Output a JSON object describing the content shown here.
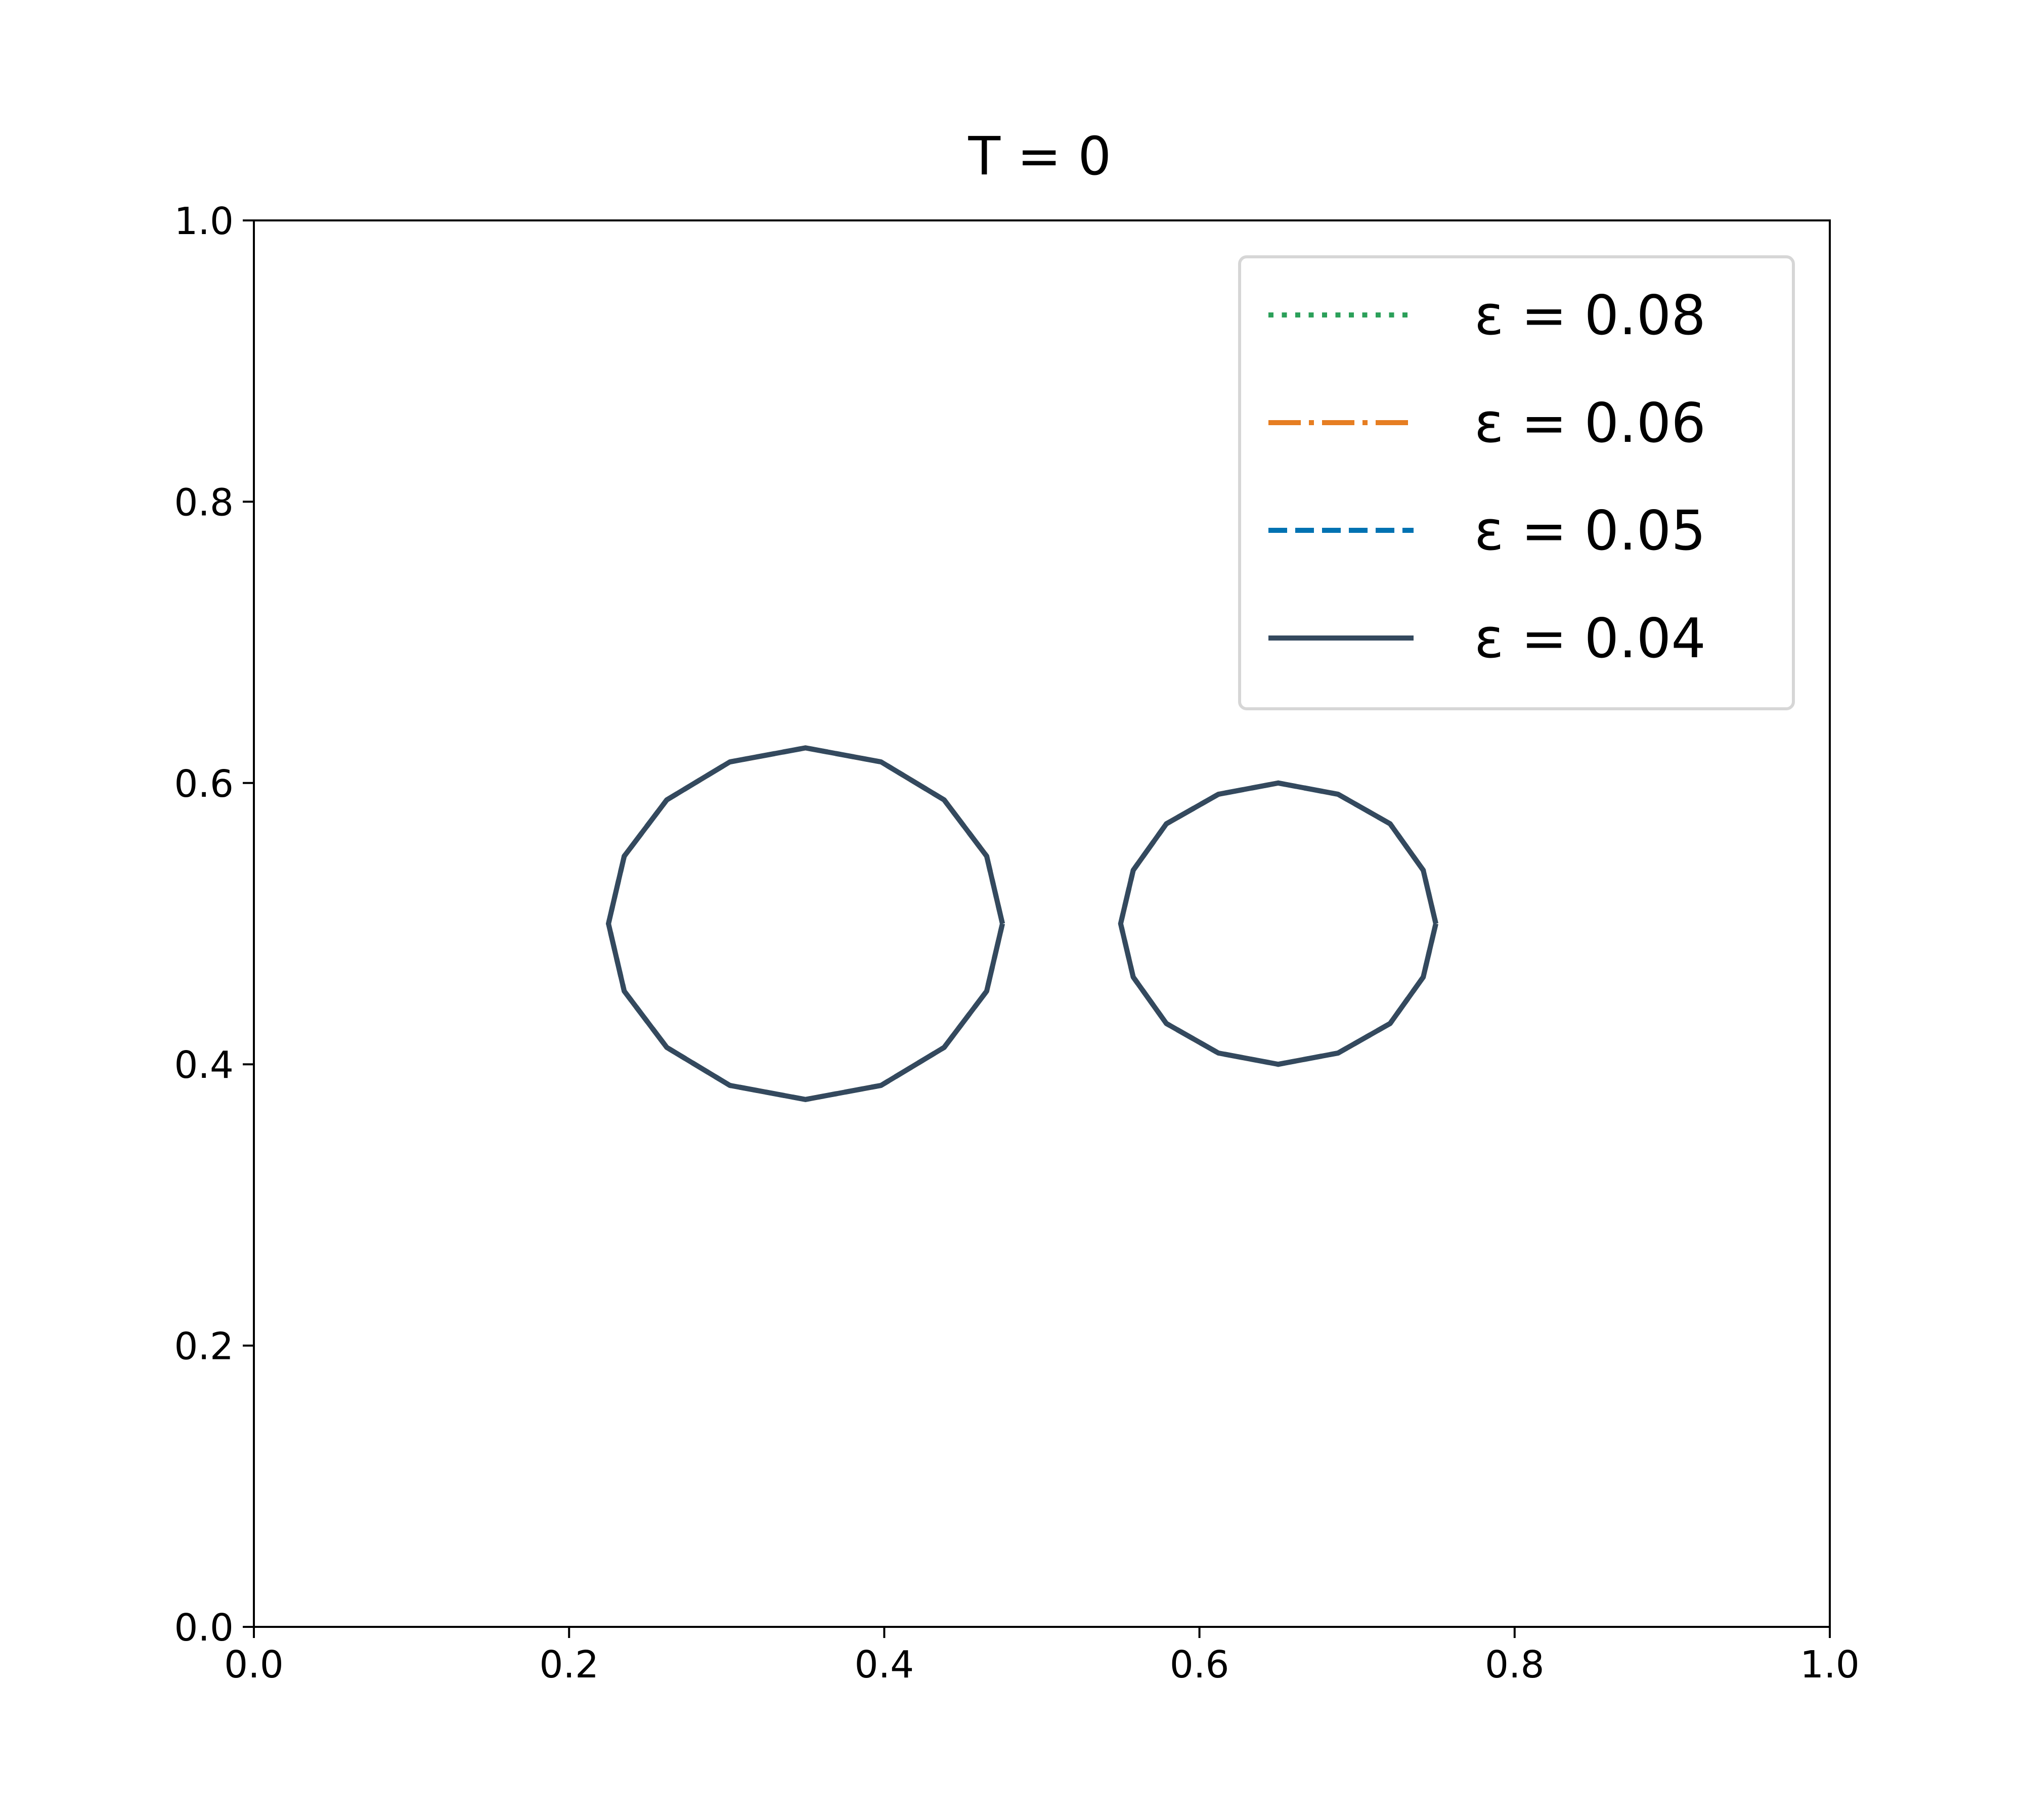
{
  "chart_data": {
    "type": "line",
    "title": "T = 0",
    "x": [
      0.475,
      0.465,
      0.438,
      0.398,
      0.35,
      0.302,
      0.262,
      0.235,
      0.225,
      0.235,
      0.262,
      0.302,
      0.35,
      0.398,
      0.438,
      0.465,
      0.475,
      null,
      0.75,
      0.742,
      0.721,
      0.688,
      0.65,
      0.612,
      0.579,
      0.558,
      0.55,
      0.558,
      0.579,
      0.612,
      0.65,
      0.688,
      0.721,
      0.742,
      0.75
    ],
    "series": [
      {
        "name": "ε = 0.08",
        "color": "#2ca05a",
        "linestyle": "dotted",
        "values": [
          0.5,
          0.548,
          0.588,
          0.615,
          0.625,
          0.615,
          0.588,
          0.548,
          0.5,
          0.452,
          0.412,
          0.385,
          0.375,
          0.385,
          0.412,
          0.452,
          0.5,
          null,
          0.5,
          0.538,
          0.571,
          0.592,
          0.6,
          0.592,
          0.571,
          0.538,
          0.5,
          0.462,
          0.429,
          0.408,
          0.4,
          0.408,
          0.429,
          0.462,
          0.5
        ]
      },
      {
        "name": "ε = 0.06",
        "color": "#e67e22",
        "linestyle": "dashdot",
        "values": [
          0.5,
          0.548,
          0.588,
          0.615,
          0.625,
          0.615,
          0.588,
          0.548,
          0.5,
          0.452,
          0.412,
          0.385,
          0.375,
          0.385,
          0.412,
          0.452,
          0.5,
          null,
          0.5,
          0.538,
          0.571,
          0.592,
          0.6,
          0.592,
          0.571,
          0.538,
          0.5,
          0.462,
          0.429,
          0.408,
          0.4,
          0.408,
          0.429,
          0.462,
          0.5
        ]
      },
      {
        "name": "ε = 0.05",
        "color": "#0072b2",
        "linestyle": "dashed",
        "values": [
          0.5,
          0.548,
          0.588,
          0.615,
          0.625,
          0.615,
          0.588,
          0.548,
          0.5,
          0.452,
          0.412,
          0.385,
          0.375,
          0.385,
          0.412,
          0.452,
          0.5,
          null,
          0.5,
          0.538,
          0.571,
          0.592,
          0.6,
          0.592,
          0.571,
          0.538,
          0.5,
          0.462,
          0.429,
          0.408,
          0.4,
          0.408,
          0.429,
          0.462,
          0.5
        ]
      },
      {
        "name": "ε = 0.04",
        "color": "#34495e",
        "linestyle": "solid",
        "values": [
          0.5,
          0.548,
          0.588,
          0.615,
          0.625,
          0.615,
          0.588,
          0.548,
          0.5,
          0.452,
          0.412,
          0.385,
          0.375,
          0.385,
          0.412,
          0.452,
          0.5,
          null,
          0.5,
          0.538,
          0.571,
          0.592,
          0.6,
          0.592,
          0.571,
          0.538,
          0.5,
          0.462,
          0.429,
          0.408,
          0.4,
          0.408,
          0.429,
          0.462,
          0.5
        ]
      }
    ],
    "xlim": [
      0,
      1
    ],
    "ylim": [
      0,
      1
    ],
    "xticks": [
      {
        "value": 0,
        "label": "0.0"
      },
      0.2,
      0.4,
      0.6,
      0.8,
      {
        "value": 1,
        "label": "1.0"
      }
    ],
    "yticks": [
      {
        "value": 0,
        "label": "0.0"
      },
      0.2,
      0.4,
      0.6,
      0.8,
      {
        "value": 1,
        "label": "1.0"
      }
    ],
    "legend": "upper right",
    "grid": false
  }
}
